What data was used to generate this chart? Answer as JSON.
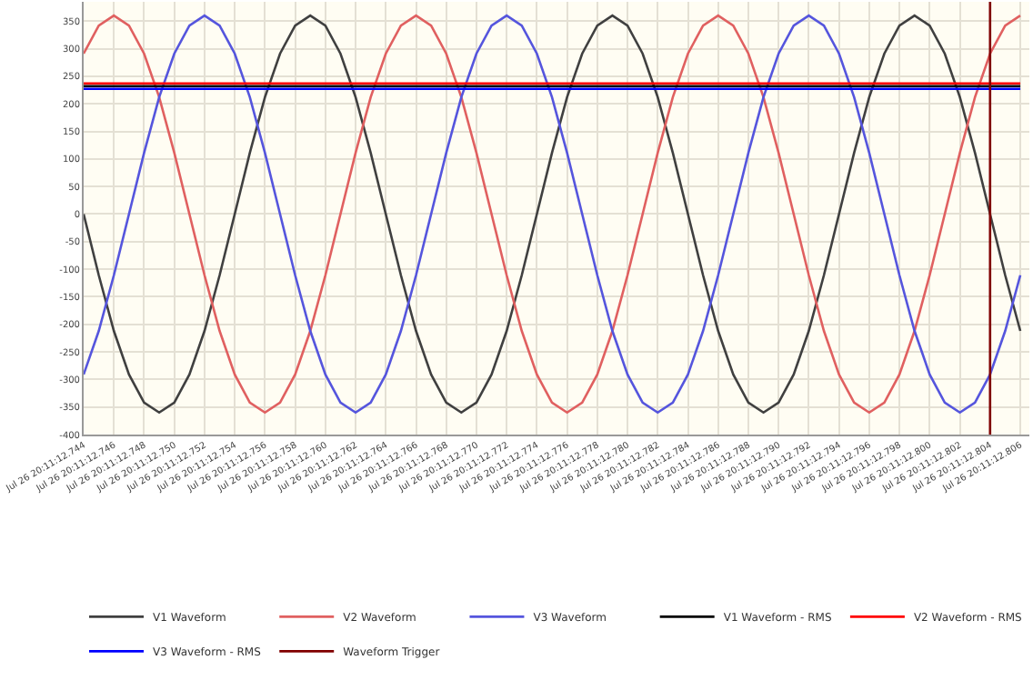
{
  "chart_data": {
    "type": "line",
    "categories": [
      "Jul 26 20:11:12.744",
      null,
      "Jul 26 20:11:12.746",
      null,
      "Jul 26 20:11:12.748",
      null,
      "Jul 26 20:11:12.750",
      null,
      "Jul 26 20:11:12.752",
      null,
      "Jul 26 20:11:12.754",
      null,
      "Jul 26 20:11:12.756",
      null,
      "Jul 26 20:11:12.758",
      null,
      "Jul 26 20:11:12.760",
      null,
      "Jul 26 20:11:12.762",
      null,
      "Jul 26 20:11:12.764",
      null,
      "Jul 26 20:11:12.766",
      null,
      "Jul 26 20:11:12.768",
      null,
      "Jul 26 20:11:12.770",
      null,
      "Jul 26 20:11:12.772",
      null,
      "Jul 26 20:11:12.774",
      null,
      "Jul 26 20:11:12.776",
      null,
      "Jul 26 20:11:12.778",
      null,
      "Jul 26 20:11:12.780",
      null,
      "Jul 26 20:11:12.782",
      null,
      "Jul 26 20:11:12.784",
      null,
      "Jul 26 20:11:12.786",
      null,
      "Jul 26 20:11:12.788",
      null,
      "Jul 26 20:11:12.790",
      null,
      "Jul 26 20:11:12.792",
      null,
      "Jul 26 20:11:12.794",
      null,
      "Jul 26 20:11:12.796",
      null,
      "Jul 26 20:11:12.798",
      null,
      "Jul 26 20:11:12.800",
      null,
      "Jul 26 20:11:12.802",
      null,
      "Jul 26 20:11:12.804",
      null,
      "Jul 26 20:11:12.806"
    ],
    "series": [
      {
        "name": "V1 Waveform",
        "color": "#404040",
        "values": [
          0,
          -111,
          -212,
          -291,
          -342,
          -360,
          -342,
          -291,
          -212,
          -111,
          0,
          111,
          212,
          291,
          342,
          360,
          342,
          291,
          212,
          111,
          0,
          -111,
          -212,
          -291,
          -342,
          -360,
          -342,
          -291,
          -212,
          -111,
          0,
          111,
          212,
          291,
          342,
          360,
          342,
          291,
          212,
          111,
          0,
          -111,
          -212,
          -291,
          -342,
          -360,
          -342,
          -291,
          -212,
          -111,
          0,
          111,
          212,
          291,
          342,
          360,
          342,
          291,
          212,
          111,
          0,
          -111,
          -212
        ]
      },
      {
        "name": "V2 Waveform",
        "color": "#e06060",
        "values": [
          291,
          342,
          360,
          342,
          291,
          212,
          111,
          0,
          -111,
          -212,
          -291,
          -342,
          -360,
          -342,
          -291,
          -212,
          -111,
          0,
          111,
          212,
          291,
          342,
          360,
          342,
          291,
          212,
          111,
          0,
          -111,
          -212,
          -291,
          -342,
          -360,
          -342,
          -291,
          -212,
          -111,
          0,
          111,
          212,
          291,
          342,
          360,
          342,
          291,
          212,
          111,
          0,
          -111,
          -212,
          -291,
          -342,
          -360,
          -342,
          -291,
          -212,
          -111,
          0,
          111,
          212,
          291,
          342,
          360
        ]
      },
      {
        "name": "V3 Waveform",
        "color": "#5555dd",
        "values": [
          -291,
          -212,
          -111,
          0,
          111,
          212,
          291,
          342,
          360,
          342,
          291,
          212,
          111,
          0,
          -111,
          -212,
          -291,
          -342,
          -360,
          -342,
          -291,
          -212,
          -111,
          0,
          111,
          212,
          291,
          342,
          360,
          342,
          291,
          212,
          111,
          0,
          -111,
          -212,
          -291,
          -342,
          -360,
          -342,
          -291,
          -212,
          -111,
          0,
          111,
          212,
          291,
          342,
          360,
          342,
          291,
          212,
          111,
          0,
          -111,
          -212,
          -291,
          -342,
          -360,
          -342,
          -291,
          -212,
          -111
        ]
      },
      {
        "name": "V1 Waveform - RMS",
        "color": "#000000",
        "x": [
          "Jul 26 20:11:12.744",
          "Jul 26 20:11:12.806"
        ],
        "values": [
          232,
          232
        ]
      },
      {
        "name": "V2 Waveform - RMS",
        "color": "#ff0000",
        "x": [
          "Jul 26 20:11:12.744",
          "Jul 26 20:11:12.806"
        ],
        "values": [
          237,
          237
        ]
      },
      {
        "name": "V3 Waveform - RMS",
        "color": "#0000ff",
        "x": [
          "Jul 26 20:11:12.744",
          "Jul 26 20:11:12.806"
        ],
        "values": [
          227,
          227
        ]
      },
      {
        "name": "Waveform Trigger",
        "color": "#800000",
        "x": [
          "Jul 26 20:11:12.804",
          "Jul 26 20:11:12.804"
        ],
        "values": [
          -400,
          385
        ]
      }
    ],
    "ylim": [
      -400,
      385
    ],
    "yticks": [
      -400,
      -350,
      -300,
      -250,
      -200,
      -150,
      -100,
      -50,
      0,
      50,
      100,
      150,
      200,
      250,
      300,
      350
    ],
    "grid": true,
    "legend": "bottom",
    "marker": "none",
    "line_style": "solid"
  }
}
